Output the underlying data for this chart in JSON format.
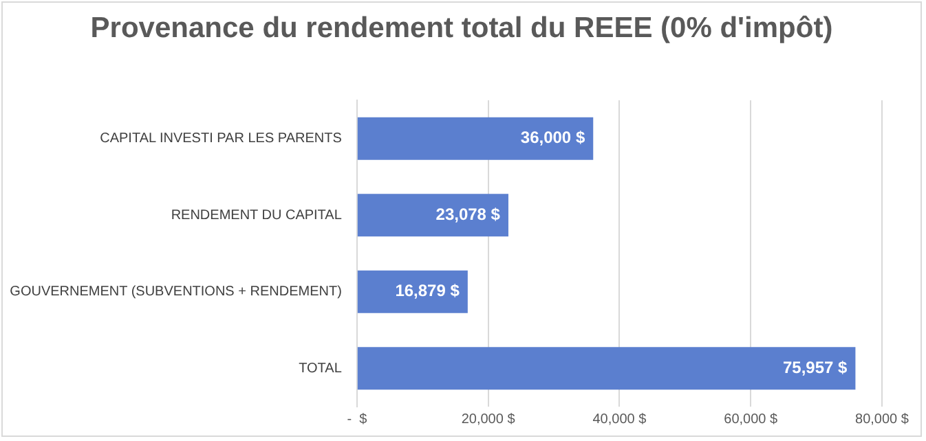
{
  "chart_data": {
    "type": "bar",
    "orientation": "horizontal",
    "title": "Provenance du rendement total du REEE  (0% d'impôt)",
    "categories": [
      "CAPITAL INVESTI PAR LES PARENTS",
      "RENDEMENT DU CAPITAL",
      "GOUVERNEMENT (SUBVENTIONS + RENDEMENT)",
      "TOTAL"
    ],
    "values": [
      36000,
      23078,
      16879,
      75957
    ],
    "value_labels": [
      "36,000 $",
      "23,078 $",
      "16,879 $",
      "75,957 $"
    ],
    "color": "#5b7fcf",
    "xlim": [
      0,
      80000
    ],
    "xticks": [
      {
        "value": 0,
        "label": "-  $"
      },
      {
        "value": 20000,
        "label": "20,000 $"
      },
      {
        "value": 40000,
        "label": "40,000 $"
      },
      {
        "value": 60000,
        "label": "60,000 $"
      },
      {
        "value": 80000,
        "label": "80,000 $"
      }
    ],
    "grid": "x",
    "legend": false
  }
}
